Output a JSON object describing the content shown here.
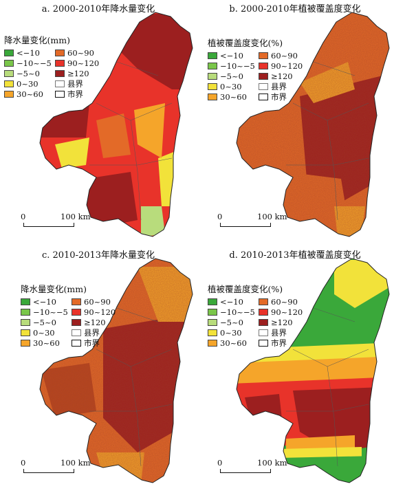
{
  "colors": {
    "lt_neg10": "#3aa83a",
    "neg10_neg5": "#7ac64a",
    "neg5_0": "#b8dc7c",
    "zero_30": "#f2e23a",
    "thirty_60": "#f5a52a",
    "sixty_90": "#e36a28",
    "ninety_120": "#e8332a",
    "ge120": "#9c1f1f",
    "county_boundary": "#7a6a5a",
    "city_boundary": "#222222"
  },
  "panels": [
    {
      "title": "a. 2000-2010年降水量变化",
      "legend_title": "降水量变化(mm)",
      "legend": [
        {
          "label": "<−10",
          "swatch": "lt_neg10"
        },
        {
          "label": "60~90",
          "swatch": "sixty_90"
        },
        {
          "label": "−10~−5",
          "swatch": "neg10_neg5"
        },
        {
          "label": "90~120",
          "swatch": "ninety_120"
        },
        {
          "label": "−5~0",
          "swatch": "neg5_0"
        },
        {
          "label": "≥120",
          "swatch": "ge120"
        },
        {
          "label": "0~30",
          "swatch": "zero_30"
        },
        {
          "label": "县界",
          "swatch": "county"
        },
        {
          "label": "30~60",
          "swatch": "thirty_60"
        },
        {
          "label": "市界",
          "swatch": "city"
        }
      ],
      "scale": {
        "zero": "0",
        "end": "100 km"
      }
    },
    {
      "title": "b. 2000-2010年植被覆盖度变化",
      "legend_title": "植被覆盖度变化(%)",
      "legend": [
        {
          "label": "<−10",
          "swatch": "lt_neg10"
        },
        {
          "label": "60~90",
          "swatch": "sixty_90"
        },
        {
          "label": "−10~−5",
          "swatch": "neg10_neg5"
        },
        {
          "label": "90~120",
          "swatch": "ninety_120"
        },
        {
          "label": "−5~0",
          "swatch": "neg5_0"
        },
        {
          "label": "≥120",
          "swatch": "ge120"
        },
        {
          "label": "0~30",
          "swatch": "zero_30"
        },
        {
          "label": "县界",
          "swatch": "county"
        },
        {
          "label": "30~60",
          "swatch": "thirty_60"
        },
        {
          "label": "市界",
          "swatch": "city"
        }
      ],
      "scale": {
        "zero": "0",
        "end": "100 km"
      }
    },
    {
      "title": "c. 2010-2013年降水量变化",
      "legend_title": "降水量变化(mm)",
      "legend": [
        {
          "label": "<−10",
          "swatch": "lt_neg10"
        },
        {
          "label": "60~90",
          "swatch": "sixty_90"
        },
        {
          "label": "−10~−5",
          "swatch": "neg10_neg5"
        },
        {
          "label": "90~120",
          "swatch": "ninety_120"
        },
        {
          "label": "−5~0",
          "swatch": "neg5_0"
        },
        {
          "label": "≥120",
          "swatch": "ge120"
        },
        {
          "label": "0~30",
          "swatch": "zero_30"
        },
        {
          "label": "县界",
          "swatch": "county"
        },
        {
          "label": "30~60",
          "swatch": "thirty_60"
        },
        {
          "label": "市界",
          "swatch": "city"
        }
      ],
      "scale": {
        "zero": "0",
        "end": "100 km"
      }
    },
    {
      "title": "d. 2010-2013年植被覆盖度变化",
      "legend_title": "植被覆盖度变化(%)",
      "legend": [
        {
          "label": "<−10",
          "swatch": "lt_neg10"
        },
        {
          "label": "60~90",
          "swatch": "sixty_90"
        },
        {
          "label": "−10~−5",
          "swatch": "neg10_neg5"
        },
        {
          "label": "90~120",
          "swatch": "ninety_120"
        },
        {
          "label": "−5~0",
          "swatch": "neg5_0"
        },
        {
          "label": "≥120",
          "swatch": "ge120"
        },
        {
          "label": "0~30",
          "swatch": "zero_30"
        },
        {
          "label": "县界",
          "swatch": "county"
        },
        {
          "label": "30~60",
          "swatch": "thirty_60"
        },
        {
          "label": "市界",
          "swatch": "city"
        }
      ],
      "scale": {
        "zero": "0",
        "end": "100 km"
      }
    }
  ]
}
